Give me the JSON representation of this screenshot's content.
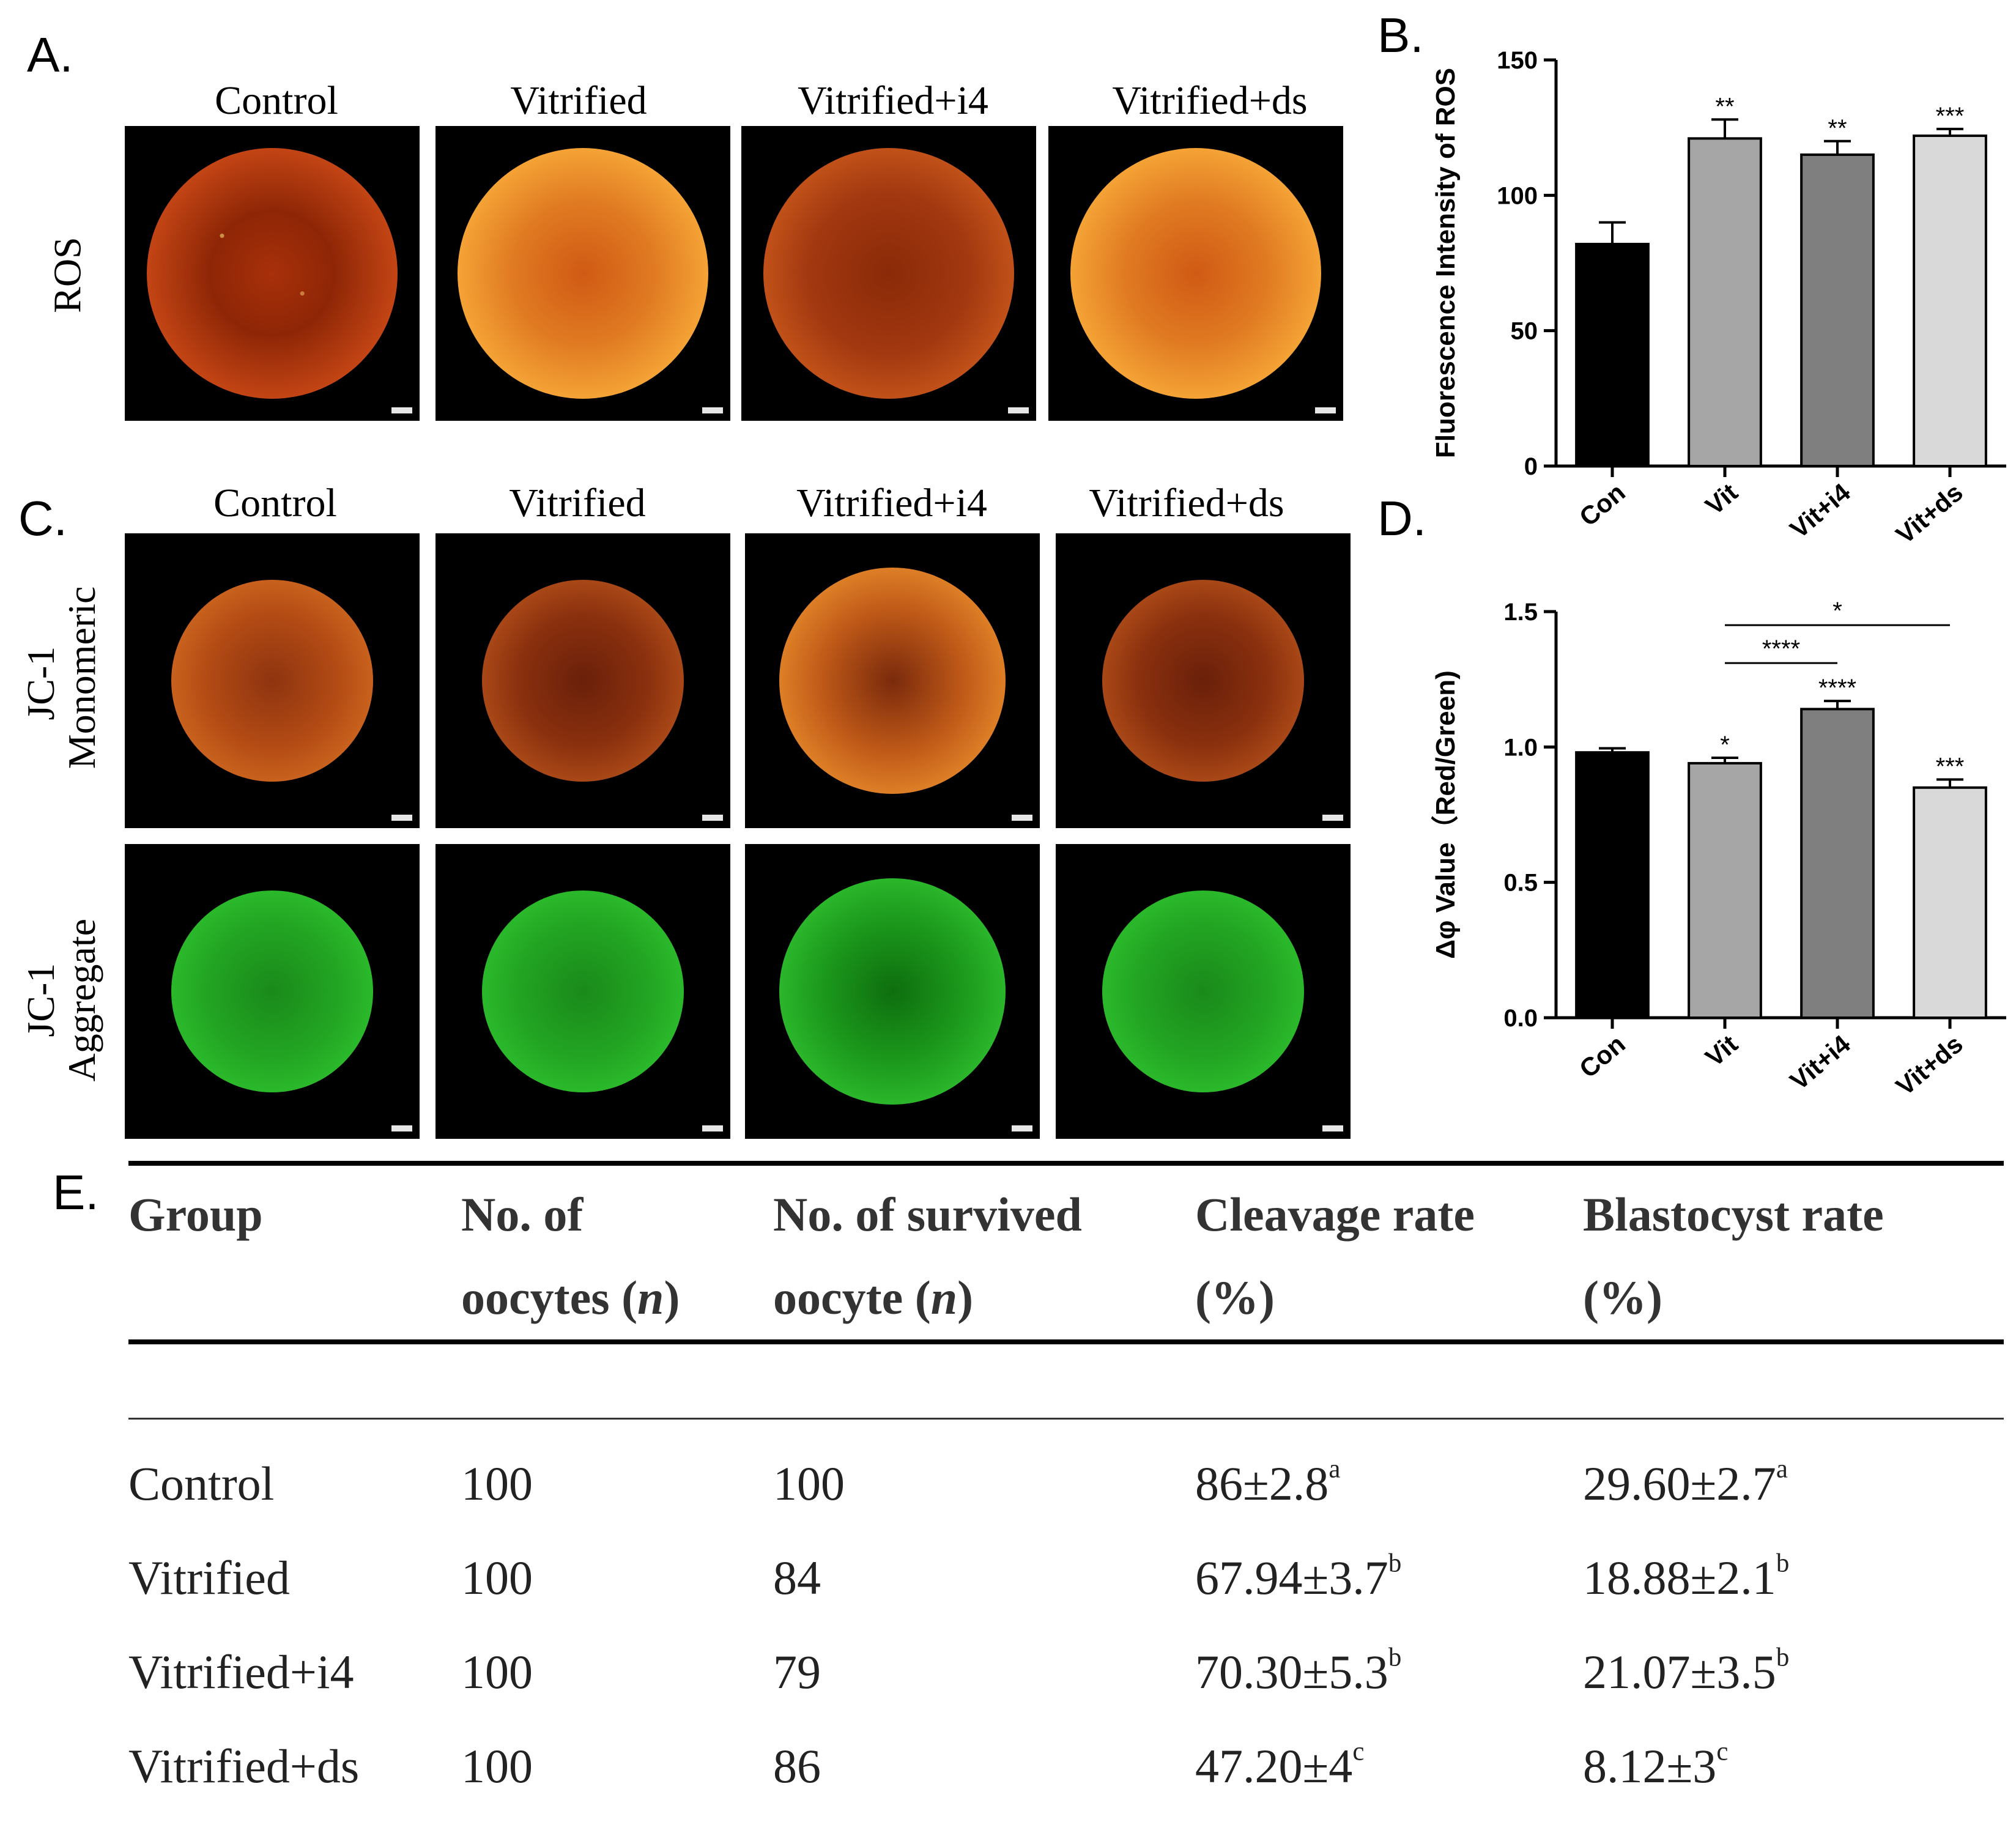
{
  "panel_letters": {
    "a": "A.",
    "b": "B.",
    "c": "C.",
    "d": "D.",
    "e": "E."
  },
  "column_titles": [
    "Control",
    "Vitrified",
    "Vitrified+i4",
    "Vitrified+ds"
  ],
  "row_labels": {
    "ros": "ROS",
    "jc1_mono_line1": "JC-1",
    "jc1_mono_line2": "Monomeric",
    "jc1_aggr_line1": "JC-1",
    "jc1_aggr_line2": "Aggregate"
  },
  "chart_data": [
    {
      "id": "B",
      "type": "bar",
      "categories": [
        "Con",
        "Vit",
        "Vit+i4",
        "Vit+ds"
      ],
      "values": [
        82,
        121,
        115,
        122
      ],
      "errors": [
        8,
        7,
        5,
        2.5
      ],
      "significance": [
        "",
        "**",
        "**",
        "***"
      ],
      "bar_colors": [
        "#000000",
        "#a6a6a6",
        "#7f7f7f",
        "#d9d9d9"
      ],
      "ylabel": "Fluorescence Intensity of ROS",
      "ylim": [
        0,
        150
      ],
      "yticks": [
        0,
        50,
        100,
        150
      ],
      "comparisons": []
    },
    {
      "id": "D",
      "type": "bar",
      "categories": [
        "Con",
        "Vit",
        "Vit+i4",
        "Vit+ds"
      ],
      "values": [
        0.98,
        0.94,
        1.14,
        0.85
      ],
      "errors": [
        0.015,
        0.02,
        0.03,
        0.03
      ],
      "significance": [
        "",
        "*",
        "****",
        "***"
      ],
      "bar_colors": [
        "#000000",
        "#a6a6a6",
        "#7f7f7f",
        "#d9d9d9"
      ],
      "ylabel": "Δφ Value（Red/Green)",
      "ylim": [
        0,
        1.5
      ],
      "yticks": [
        0.0,
        0.5,
        1.0,
        1.5
      ],
      "comparisons": [
        {
          "from": 1,
          "to": 3,
          "label": "*",
          "level": 1.45
        },
        {
          "from": 1,
          "to": 2,
          "label": "****",
          "level": 1.31
        }
      ]
    }
  ],
  "table": {
    "headers": [
      [
        "Group",
        ""
      ],
      [
        "No. of",
        "oocytes (n)"
      ],
      [
        "No. of survived",
        "oocyte (n)"
      ],
      [
        "Cleavage rate",
        "(%)"
      ],
      [
        "Blastocyst rate",
        "(%)"
      ]
    ],
    "rows": [
      {
        "group": "Control",
        "oocytes": "100",
        "survived": "100",
        "cleavage": "86±2.8",
        "cleavage_sup": "a",
        "blastocyst": "29.60±2.7",
        "blastocyst_sup": "a"
      },
      {
        "group": "Vitrified",
        "oocytes": "100",
        "survived": "84",
        "cleavage": "67.94±3.7",
        "cleavage_sup": "b",
        "blastocyst": "18.88±2.1",
        "blastocyst_sup": "b"
      },
      {
        "group": "Vitrified+i4",
        "oocytes": "100",
        "survived": "79",
        "cleavage": "70.30±5.3",
        "cleavage_sup": "b",
        "blastocyst": "21.07±3.5",
        "blastocyst_sup": "b"
      },
      {
        "group": "Vitrified+ds",
        "oocytes": "100",
        "survived": "86",
        "cleavage": "47.20±4",
        "cleavage_sup": "c",
        "blastocyst": "8.12±3",
        "blastocyst_sup": "c"
      }
    ]
  }
}
